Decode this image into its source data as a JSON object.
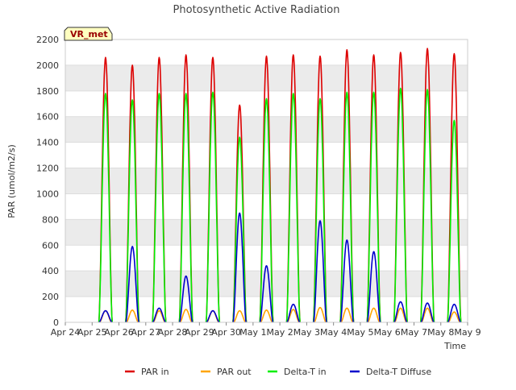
{
  "chart_data": {
    "type": "line",
    "title": "Photosynthetic Active Radiation",
    "xlabel": "Time",
    "ylabel": "PAR (umol/m2/s)",
    "ylim": [
      0,
      2200
    ],
    "yticks": [
      0,
      200,
      400,
      600,
      800,
      1000,
      1200,
      1400,
      1600,
      1800,
      2000,
      2200
    ],
    "xlim": [
      0,
      15
    ],
    "xtick_labels": [
      "Apr 24",
      "Apr 25",
      "Apr 26",
      "Apr 27",
      "Apr 28",
      "Apr 29",
      "Apr 30",
      "May 1",
      "May 2",
      "May 3",
      "May 4",
      "May 5",
      "May 6",
      "May 7",
      "May 8",
      "May 9"
    ],
    "station_label": "VR_met",
    "legend_position": "bottom",
    "band_color": "#ebebeb",
    "day_peaks": [
      {
        "day": "Apr 25",
        "par_in": 2060,
        "par_out": 90,
        "delta_t_in": 1780,
        "diffuse": 90
      },
      {
        "day": "Apr 26",
        "par_in": 2000,
        "par_out": 95,
        "delta_t_in": 1730,
        "diffuse": 590
      },
      {
        "day": "Apr 27",
        "par_in": 2060,
        "par_out": 90,
        "delta_t_in": 1780,
        "diffuse": 110
      },
      {
        "day": "Apr 28",
        "par_in": 2080,
        "par_out": 100,
        "delta_t_in": 1780,
        "diffuse": 360
      },
      {
        "day": "Apr 29",
        "par_in": 2060,
        "par_out": 90,
        "delta_t_in": 1790,
        "diffuse": 90
      },
      {
        "day": "Apr 30",
        "par_in": 1690,
        "par_out": 90,
        "delta_t_in": 1440,
        "diffuse": 850
      },
      {
        "day": "May 1",
        "par_in": 2070,
        "par_out": 95,
        "delta_t_in": 1740,
        "diffuse": 440
      },
      {
        "day": "May 2",
        "par_in": 2080,
        "par_out": 100,
        "delta_t_in": 1780,
        "diffuse": 140
      },
      {
        "day": "May 3",
        "par_in": 2070,
        "par_out": 115,
        "delta_t_in": 1740,
        "diffuse": 790
      },
      {
        "day": "May 4",
        "par_in": 2120,
        "par_out": 110,
        "delta_t_in": 1790,
        "diffuse": 640
      },
      {
        "day": "May 5",
        "par_in": 2080,
        "par_out": 110,
        "delta_t_in": 1790,
        "diffuse": 550
      },
      {
        "day": "May 6",
        "par_in": 2100,
        "par_out": 110,
        "delta_t_in": 1820,
        "diffuse": 160
      },
      {
        "day": "May 7",
        "par_in": 2130,
        "par_out": 110,
        "delta_t_in": 1810,
        "diffuse": 150
      },
      {
        "day": "May 8",
        "par_in": 2090,
        "par_out": 80,
        "delta_t_in": 1570,
        "diffuse": 140
      }
    ],
    "series": [
      {
        "name": "PAR in",
        "color": "#dd0000"
      },
      {
        "name": "PAR out",
        "color": "#ffa500"
      },
      {
        "name": "Delta-T in",
        "color": "#00ee00"
      },
      {
        "name": "Delta-T Diffuse",
        "color": "#0000cc"
      }
    ]
  }
}
